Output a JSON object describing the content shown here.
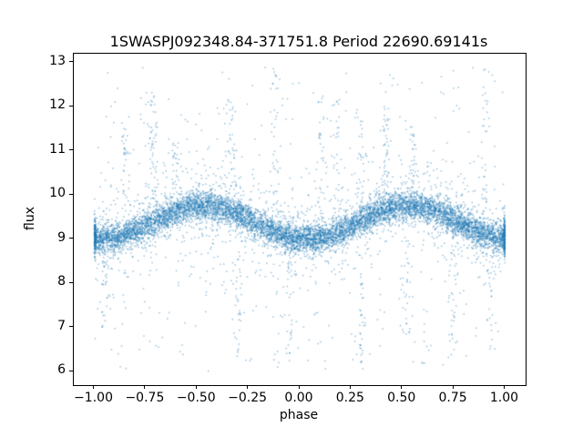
{
  "chart_data": {
    "type": "scatter",
    "title": "1SWASPJ092348.84-371751.8 Period 22690.69141s",
    "xlabel": "phase",
    "ylabel": "flux",
    "xlim": [
      -1.1,
      1.1
    ],
    "ylim": [
      5.7,
      13.2
    ],
    "x_tick_values": [
      -1.0,
      -0.75,
      -0.5,
      -0.25,
      0.0,
      0.25,
      0.5,
      0.75,
      1.0
    ],
    "x_tick_labels": [
      "−1.00",
      "−0.75",
      "−0.50",
      "−0.25",
      "0.00",
      "0.25",
      "0.50",
      "0.75",
      "1.00"
    ],
    "y_tick_values": [
      6,
      7,
      8,
      9,
      10,
      11,
      12,
      13
    ],
    "y_tick_labels": [
      "6",
      "7",
      "8",
      "9",
      "10",
      "11",
      "12",
      "13"
    ],
    "grid": false,
    "legend": "none",
    "point_color": "#1f77b4",
    "point_alpha": 0.45,
    "point_size": 1.5,
    "model": {
      "description": "Dense phase-folded light curve: sinusoidal mean flux ~9.0-9.8 over phase -1..1 with gaussian scatter plus broad outliers spanning flux 6-12.9",
      "seed": 42,
      "n_core": 8000,
      "base_flux": 9.38,
      "amplitude": 0.38,
      "peak_phase": 0.53,
      "core_sigma": 0.16,
      "n_mid": 1400,
      "mid_sigma": 0.5,
      "n_outlier": 450,
      "outlier_flux_range": [
        6.0,
        12.9
      ],
      "edge_cluster": {
        "n": 400,
        "sigma_x": 0.004,
        "flux_mean": 9.05,
        "flux_sigma": 0.22
      },
      "streaks": [
        {
          "x": -0.85,
          "y0": 9.9,
          "y1": 11.6,
          "n": 30
        },
        {
          "x": -0.72,
          "y0": 9.9,
          "y1": 12.4,
          "n": 45
        },
        {
          "x": -0.6,
          "y0": 10.0,
          "y1": 11.2,
          "n": 25
        },
        {
          "x": -0.33,
          "y0": 10.0,
          "y1": 12.2,
          "n": 40
        },
        {
          "x": -0.12,
          "y0": 9.6,
          "y1": 12.9,
          "n": 40
        },
        {
          "x": 0.1,
          "y0": 9.4,
          "y1": 12.3,
          "n": 35
        },
        {
          "x": 0.18,
          "y0": 9.5,
          "y1": 12.2,
          "n": 30
        },
        {
          "x": 0.3,
          "y0": 9.6,
          "y1": 11.9,
          "n": 30
        },
        {
          "x": 0.42,
          "y0": 9.9,
          "y1": 12.0,
          "n": 45
        },
        {
          "x": 0.55,
          "y0": 10.1,
          "y1": 11.7,
          "n": 30
        },
        {
          "x": 0.9,
          "y0": 9.8,
          "y1": 12.9,
          "n": 35
        },
        {
          "x": -0.95,
          "y0": 7.0,
          "y1": 8.6,
          "n": 25
        },
        {
          "x": -0.3,
          "y0": 6.3,
          "y1": 8.8,
          "n": 30
        },
        {
          "x": -0.05,
          "y0": 6.1,
          "y1": 8.6,
          "n": 30
        },
        {
          "x": 0.3,
          "y0": 6.0,
          "y1": 8.7,
          "n": 35
        },
        {
          "x": 0.52,
          "y0": 6.8,
          "y1": 8.6,
          "n": 25
        },
        {
          "x": 0.75,
          "y0": 6.3,
          "y1": 8.7,
          "n": 30
        },
        {
          "x": 0.93,
          "y0": 6.5,
          "y1": 8.7,
          "n": 25
        }
      ]
    }
  }
}
